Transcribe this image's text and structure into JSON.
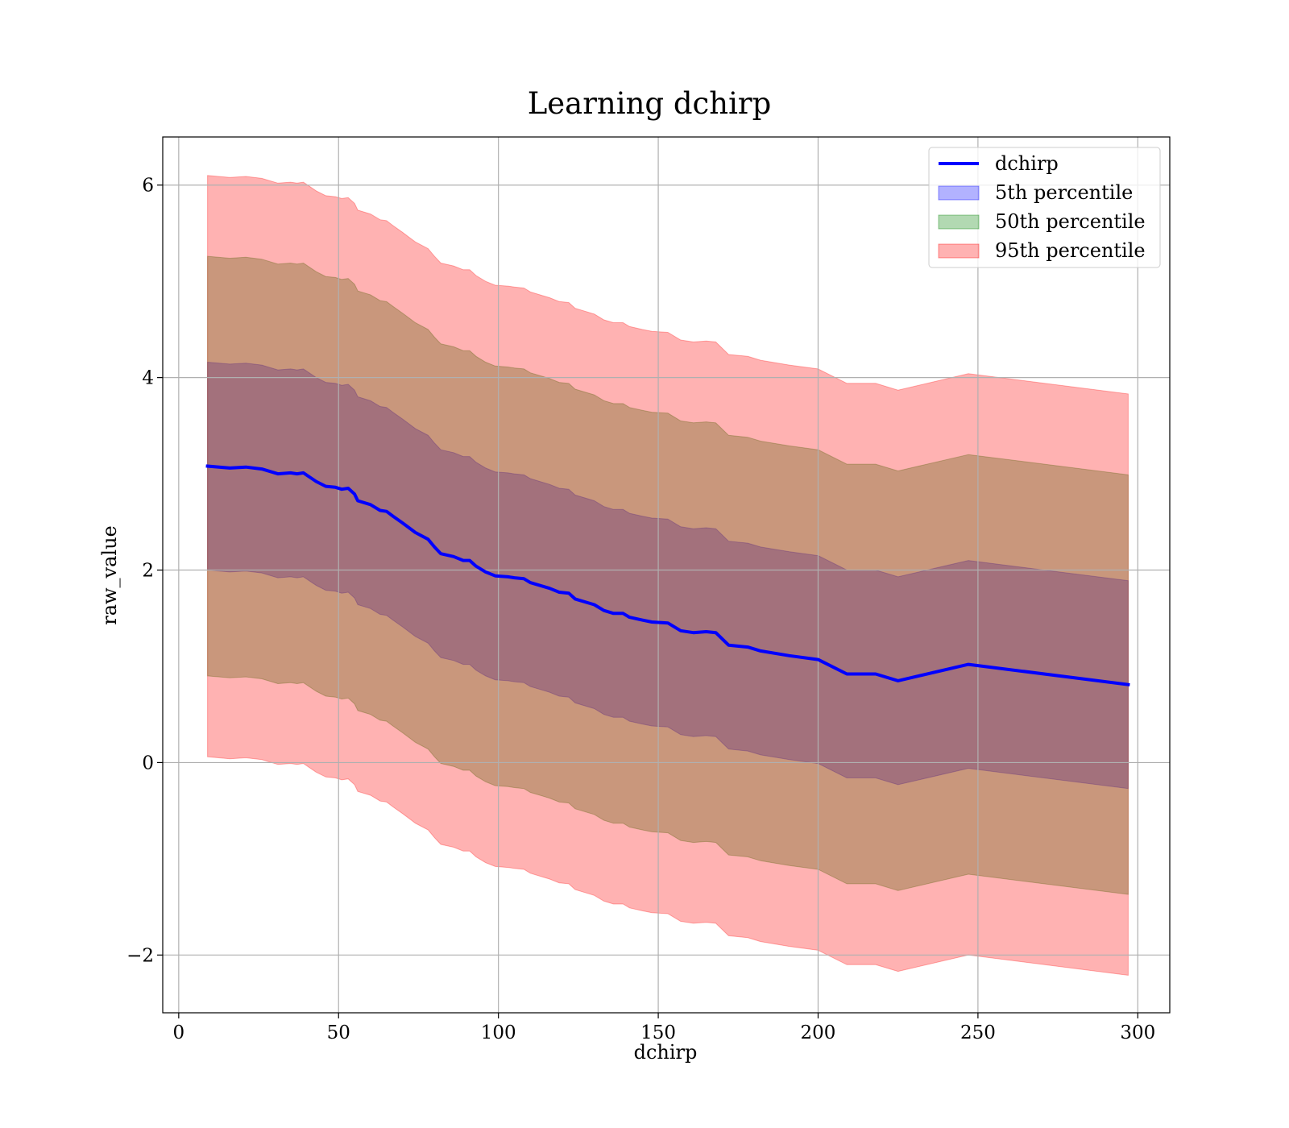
{
  "chart_data": {
    "type": "line",
    "title": "Learning dchirp",
    "xlabel": "dchirp",
    "ylabel": "raw_value",
    "xlim": [
      -5,
      310
    ],
    "ylim": [
      -2.6,
      6.5
    ],
    "xticks": [
      0,
      50,
      100,
      150,
      200,
      250,
      300
    ],
    "yticks": [
      -2,
      0,
      2,
      4,
      6
    ],
    "xtick_labels": [
      "0",
      "50",
      "100",
      "150",
      "200",
      "250",
      "300"
    ],
    "ytick_labels": [
      "−2",
      "0",
      "2",
      "4",
      "6"
    ],
    "grid": true,
    "legend_position": "upper right",
    "colors": {
      "line": "#0000ff",
      "band_5th": "#0000ff",
      "band_50th": "#008000",
      "band_95th": "#ff0000",
      "band_alpha": 0.3,
      "grid": "#b0b0b0"
    },
    "x": [
      9,
      16,
      21,
      26,
      31,
      35,
      37,
      39,
      43,
      46,
      49,
      51,
      53,
      55,
      56,
      60,
      63,
      65,
      67,
      70,
      74,
      78,
      80,
      82,
      86,
      89,
      91,
      93,
      96,
      99,
      103,
      105,
      108,
      110,
      114,
      116,
      119,
      122,
      124,
      130,
      133,
      136,
      139,
      141,
      145,
      148,
      153,
      157,
      161,
      165,
      168,
      172,
      178,
      182,
      191,
      200,
      209,
      218,
      225,
      247,
      297
    ],
    "series": [
      {
        "name": "dchirp",
        "type": "line",
        "values": [
          3.08,
          3.06,
          3.07,
          3.05,
          3.0,
          3.01,
          3.0,
          3.01,
          2.92,
          2.87,
          2.86,
          2.84,
          2.85,
          2.79,
          2.72,
          2.68,
          2.62,
          2.61,
          2.56,
          2.49,
          2.39,
          2.32,
          2.24,
          2.17,
          2.14,
          2.1,
          2.1,
          2.04,
          1.98,
          1.94,
          1.93,
          1.92,
          1.91,
          1.87,
          1.83,
          1.81,
          1.77,
          1.76,
          1.7,
          1.64,
          1.58,
          1.55,
          1.55,
          1.51,
          1.48,
          1.46,
          1.45,
          1.37,
          1.35,
          1.36,
          1.35,
          1.22,
          1.2,
          1.16,
          1.11,
          1.07,
          0.92,
          0.92,
          0.85,
          1.02,
          0.81
        ]
      },
      {
        "name": "5th percentile",
        "type": "band",
        "half_width": 1.08
      },
      {
        "name": "50th percentile",
        "type": "band",
        "half_width": 2.18
      },
      {
        "name": "95th percentile",
        "type": "band",
        "half_width": 3.02
      }
    ]
  }
}
